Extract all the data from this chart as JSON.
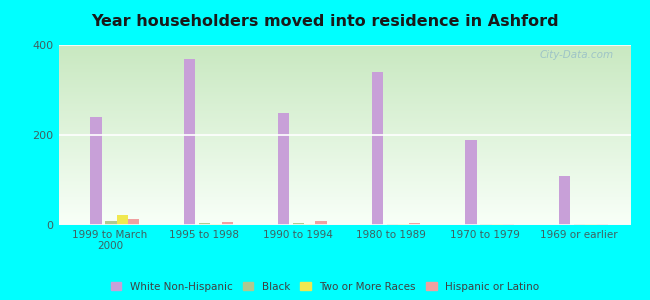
{
  "title": "Year householders moved into residence in Ashford",
  "categories": [
    "1999 to March\n2000",
    "1995 to 1998",
    "1990 to 1994",
    "1980 to 1989",
    "1970 to 1979",
    "1969 or earlier"
  ],
  "series": {
    "White Non-Hispanic": [
      240,
      370,
      248,
      340,
      190,
      110
    ],
    "Black": [
      10,
      5,
      4,
      2,
      2,
      2
    ],
    "Two or More Races": [
      22,
      2,
      2,
      2,
      2,
      2
    ],
    "Hispanic or Latino": [
      13,
      6,
      8,
      5,
      2,
      2
    ]
  },
  "colors": {
    "White Non-Hispanic": "#c8a0d8",
    "Black": "#b0c890",
    "Two or More Races": "#f0e850",
    "Hispanic or Latino": "#f0a0a0"
  },
  "ylim": [
    0,
    400
  ],
  "yticks": [
    0,
    200,
    400
  ],
  "background_outer": "#00ffff",
  "background_inner_top": "#f8fff8",
  "background_inner_bottom": "#c8e8c0",
  "watermark": "City-Data.com",
  "bar_width": 0.12
}
